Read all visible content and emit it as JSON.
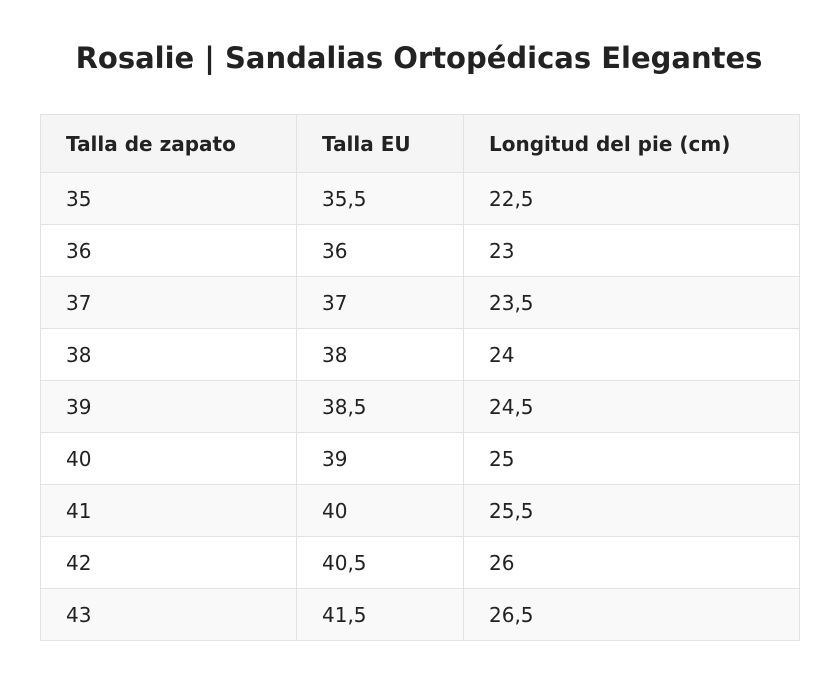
{
  "title": "Rosalie | Sandalias Ortopédicas Elegantes",
  "table": {
    "headers": [
      "Talla de zapato",
      "Talla EU",
      "Longitud del pie (cm)"
    ],
    "rows": [
      [
        "35",
        "35,5",
        "22,5"
      ],
      [
        "36",
        "36",
        "23"
      ],
      [
        "37",
        "37",
        "23,5"
      ],
      [
        "38",
        "38",
        "24"
      ],
      [
        "39",
        "38,5",
        "24,5"
      ],
      [
        "40",
        "39",
        "25"
      ],
      [
        "41",
        "40",
        "25,5"
      ],
      [
        "42",
        "40,5",
        "26"
      ],
      [
        "43",
        "41,5",
        "26,5"
      ]
    ]
  }
}
